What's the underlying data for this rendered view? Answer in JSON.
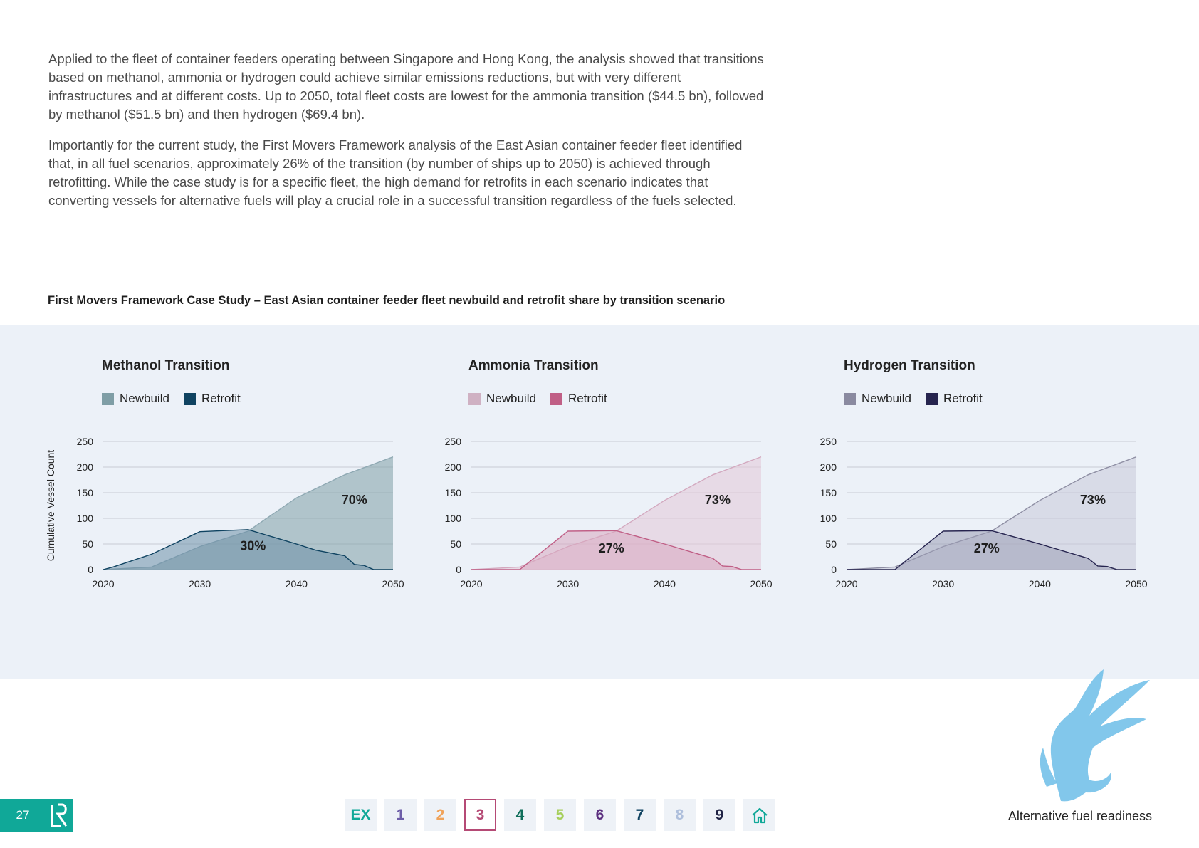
{
  "intro": {
    "paragraphs": [
      "Applied to the fleet of container feeders operating between Singapore and Hong Kong, the analysis showed that transitions based on methanol, ammonia or hydrogen could achieve similar emissions reductions, but with very different infrastructures and at different costs. Up to 2050, total fleet costs are lowest for the ammonia transition ($44.5 bn), followed by methanol ($51.5 bn) and then hydrogen ($69.4 bn).",
      "Importantly for the current study, the First Movers Framework analysis of the East Asian container feeder fleet identified that, in all fuel scenarios, approximately 26% of the transition (by number of ships up to 2050) is achieved through retrofitting. While the case study is for a specific fleet, the high demand for retrofits in each scenario indicates that converting vessels for alternative fuels will play a crucial role in a successful transition regardless of the fuels selected."
    ]
  },
  "figure_title": "First Movers Framework Case Study – East Asian container feeder fleet newbuild and retrofit share by transition scenario",
  "y_axis_label": "Cumulative Vessel Count",
  "chart_data": [
    {
      "type": "area",
      "title": "Methanol Transition",
      "ylabel": "Cumulative Vessel Count",
      "xlim": [
        2020,
        2050
      ],
      "ylim": [
        0,
        250
      ],
      "xticks": [
        2020,
        2030,
        2040,
        2050
      ],
      "yticks": [
        0,
        50,
        100,
        150,
        200,
        250
      ],
      "grid": true,
      "legend_position": "top-left",
      "colors": {
        "newbuild_fill": "#7f9ea6",
        "newbuild_line": "#8fa9b3",
        "retrofit_fill": "#6e8fa8",
        "retrofit_line": "#0f4361",
        "newbuild_swatch": "#7f9ea6",
        "retrofit_swatch": "#0f4361"
      },
      "series": [
        {
          "name": "Newbuild",
          "x": [
            2020,
            2025,
            2030,
            2035,
            2040,
            2045,
            2050
          ],
          "y": [
            0,
            5,
            45,
            75,
            140,
            185,
            220
          ]
        },
        {
          "name": "Retrofit",
          "x": [
            2020,
            2021,
            2025,
            2030,
            2035,
            2040,
            2042,
            2045,
            2046,
            2047,
            2048,
            2050
          ],
          "y": [
            0,
            5,
            30,
            74,
            78,
            50,
            38,
            27,
            10,
            8,
            0,
            0
          ]
        }
      ],
      "annotations": [
        {
          "text": "70%",
          "x": 2046,
          "y": 128
        },
        {
          "text": "30%",
          "x": 2035.5,
          "y": 38
        }
      ]
    },
    {
      "type": "area",
      "title": "Ammonia Transition",
      "ylabel": "",
      "xlim": [
        2020,
        2050
      ],
      "ylim": [
        0,
        250
      ],
      "xticks": [
        2020,
        2030,
        2040,
        2050
      ],
      "yticks": [
        0,
        50,
        100,
        150,
        200,
        250
      ],
      "grid": true,
      "legend_position": "top-left",
      "colors": {
        "newbuild_fill": "#e3c7d7",
        "newbuild_line": "#d3a9bf",
        "retrofit_fill": "#d8a8c0",
        "retrofit_line": "#c05f86",
        "newbuild_swatch": "#cfb1c3",
        "retrofit_swatch": "#c05f86"
      },
      "series": [
        {
          "name": "Newbuild",
          "x": [
            2020,
            2025,
            2030,
            2035,
            2040,
            2045,
            2050
          ],
          "y": [
            0,
            5,
            45,
            75,
            135,
            185,
            220
          ]
        },
        {
          "name": "Retrofit",
          "x": [
            2020,
            2025,
            2030,
            2035,
            2040,
            2045,
            2046,
            2047,
            2048,
            2050
          ],
          "y": [
            0,
            0,
            75,
            76,
            50,
            22,
            7,
            6,
            0,
            0
          ]
        }
      ],
      "annotations": [
        {
          "text": "73%",
          "x": 2045.5,
          "y": 128
        },
        {
          "text": "27%",
          "x": 2034.5,
          "y": 33
        }
      ]
    },
    {
      "type": "area",
      "title": "Hydrogen Transition",
      "ylabel": "",
      "xlim": [
        2020,
        2050
      ],
      "ylim": [
        0,
        250
      ],
      "xticks": [
        2020,
        2030,
        2040,
        2050
      ],
      "yticks": [
        0,
        50,
        100,
        150,
        200,
        250
      ],
      "grid": true,
      "legend_position": "top-left",
      "colors": {
        "newbuild_fill": "#c8c9d9",
        "newbuild_line": "#8e8ea3",
        "retrofit_fill": "#9d9fb7",
        "retrofit_line": "#26244f",
        "newbuild_swatch": "#8a8aa0",
        "retrofit_swatch": "#26244f"
      },
      "series": [
        {
          "name": "Newbuild",
          "x": [
            2020,
            2025,
            2030,
            2035,
            2040,
            2045,
            2050
          ],
          "y": [
            0,
            5,
            45,
            75,
            135,
            185,
            220
          ]
        },
        {
          "name": "Retrofit",
          "x": [
            2020,
            2025,
            2030,
            2035,
            2040,
            2045,
            2046,
            2047,
            2048,
            2050
          ],
          "y": [
            0,
            0,
            75,
            76,
            50,
            22,
            7,
            6,
            0,
            0
          ]
        }
      ],
      "annotations": [
        {
          "text": "73%",
          "x": 2045.5,
          "y": 128
        },
        {
          "text": "27%",
          "x": 2034.5,
          "y": 33
        }
      ]
    }
  ],
  "footer": {
    "page_number": "27",
    "logo_text": "LR",
    "nav": [
      {
        "label": "EX",
        "color": "#10a898",
        "active": false
      },
      {
        "label": "1",
        "color": "#6d5ea8",
        "active": false
      },
      {
        "label": "2",
        "color": "#f0a35a",
        "active": false
      },
      {
        "label": "3",
        "color": "#b54a75",
        "active": true
      },
      {
        "label": "4",
        "color": "#0f6e5a",
        "active": false
      },
      {
        "label": "5",
        "color": "#a6cf5b",
        "active": false
      },
      {
        "label": "6",
        "color": "#5b2f7f",
        "active": false
      },
      {
        "label": "7",
        "color": "#0f4361",
        "active": false
      },
      {
        "label": "8",
        "color": "#aebfdc",
        "active": false
      },
      {
        "label": "9",
        "color": "#1f2244",
        "active": false
      }
    ],
    "home_icon": "home-icon",
    "section_title": "Alternative fuel readiness"
  }
}
